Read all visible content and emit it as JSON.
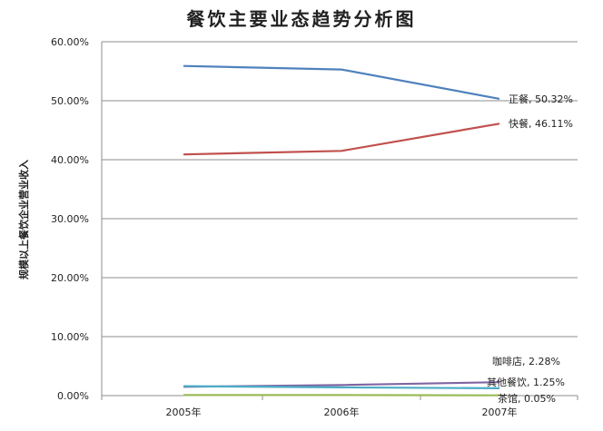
{
  "chart_data": {
    "type": "line",
    "title": "餐饮主要业态趋势分析图",
    "ylabel": "规模以上餐饮企业营业收入",
    "xlabel": "",
    "categories": [
      "2005年",
      "2006年",
      "2007年"
    ],
    "yticks": [
      "0.00%",
      "10.00%",
      "20.00%",
      "30.00%",
      "40.00%",
      "50.00%",
      "60.00%"
    ],
    "ylim": [
      0,
      60
    ],
    "grid": true,
    "series": [
      {
        "name": "正餐",
        "values": [
          55.9,
          55.3,
          50.32
        ],
        "color": "#4f81bd",
        "label": "正餐, 50.32%"
      },
      {
        "name": "快餐",
        "values": [
          40.9,
          41.5,
          46.11
        ],
        "color": "#c0504d",
        "label": "快餐, 46.11%"
      },
      {
        "name": "咖啡店",
        "values": [
          1.5,
          1.8,
          2.28
        ],
        "color": "#8064a2",
        "label": "咖啡店, 2.28%"
      },
      {
        "name": "其他餐饮",
        "values": [
          1.6,
          1.4,
          1.25
        ],
        "color": "#4bacc6",
        "label": "其他餐饮, 1.25%"
      },
      {
        "name": "茶馆",
        "values": [
          0.1,
          0.1,
          0.05
        ],
        "color": "#9bbb59",
        "label": "茶馆, 0.05%"
      }
    ]
  }
}
